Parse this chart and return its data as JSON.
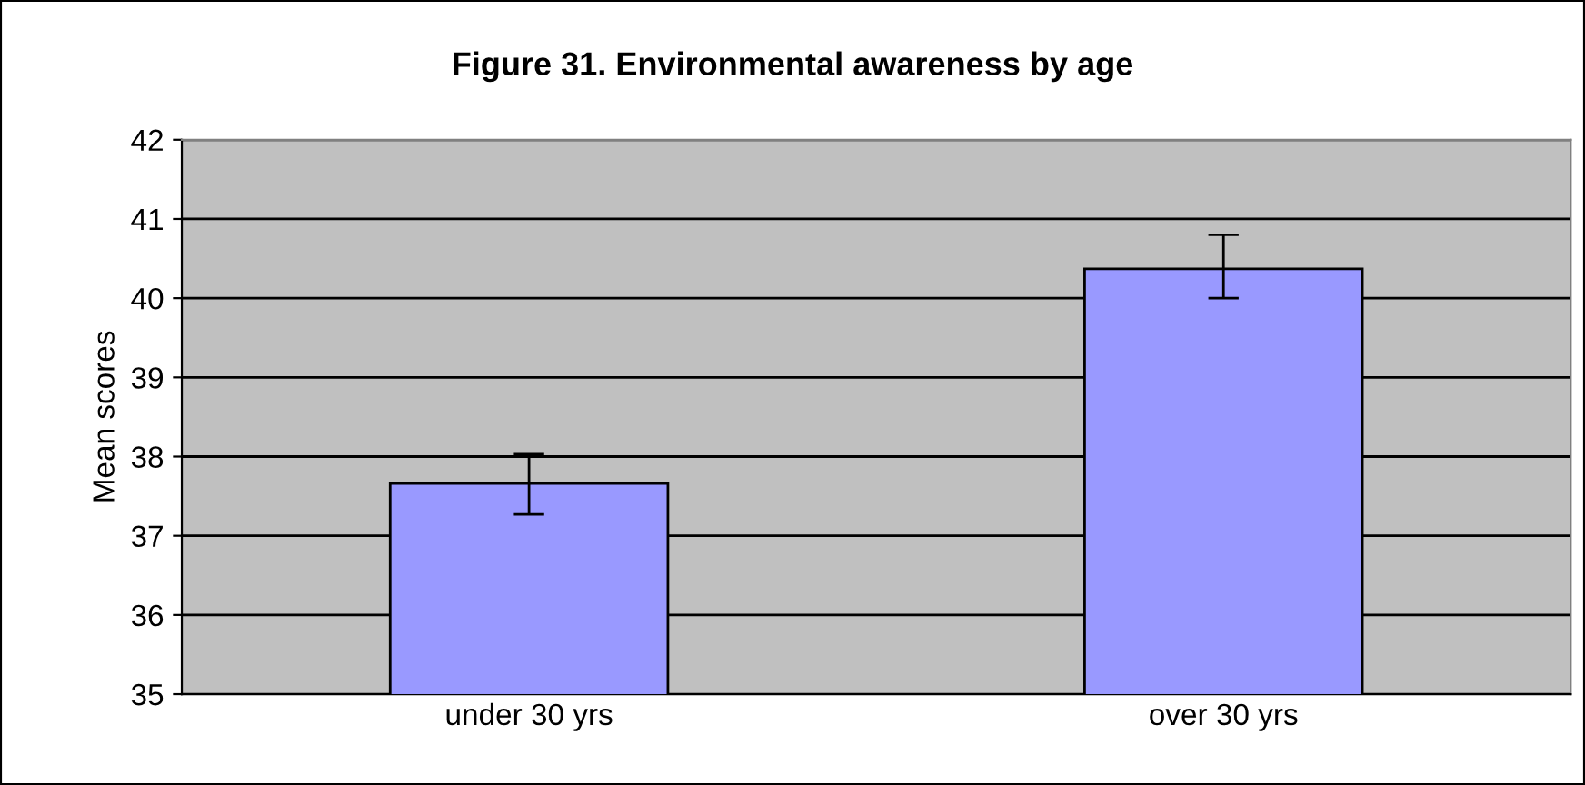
{
  "chart_data": {
    "type": "bar",
    "title": "Figure 31. Environmental awareness by age",
    "ylabel": "Mean scores",
    "categories": [
      "under 30 yrs",
      "over 30 yrs"
    ],
    "values": [
      37.66,
      40.37
    ],
    "errors": [
      [
        37.27,
        38.03
      ],
      [
        40.0,
        40.8
      ]
    ],
    "color": "#9999ff",
    "ylim": [
      35,
      42
    ],
    "yticks": [
      35,
      36,
      37,
      38,
      39,
      40,
      41,
      42
    ],
    "grid": "y"
  }
}
